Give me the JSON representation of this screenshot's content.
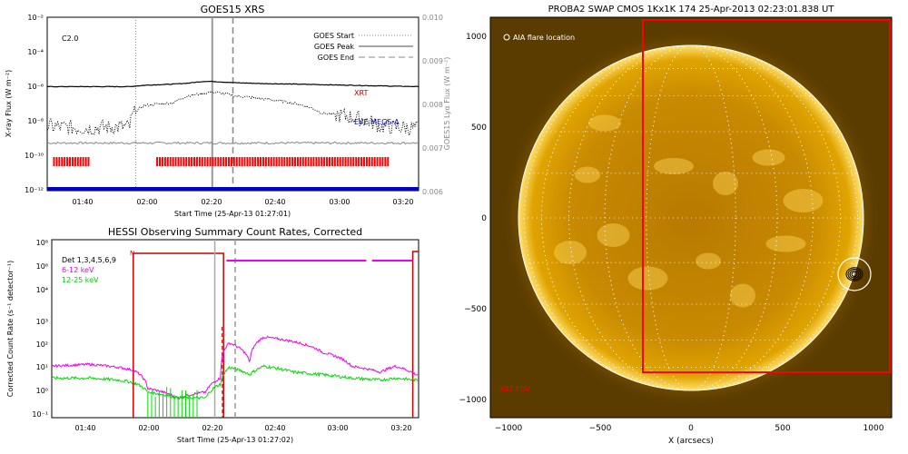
{
  "goes": {
    "title": "GOES15 XRS",
    "ylabel": "X-ray Flux (W m⁻²)",
    "y2label": "GOES15 Lyα Flux (W m⁻²)",
    "xlabel": "Start Time (25-Apr-13 01:27:01)",
    "class_label": "C2.0",
    "legend": [
      "GOES Start",
      "GOES Peak",
      "GOES End"
    ],
    "annotations": {
      "xrt": "XRT",
      "eve": "EVE MEGS-A"
    },
    "y_ticks": [
      "10⁻²",
      "10⁻⁴",
      "10⁻⁶",
      "10⁻⁸",
      "10⁻¹⁰",
      "10⁻¹²"
    ],
    "y2_ticks": [
      "0.010",
      "0.009",
      "0.008",
      "0.007",
      "0.006"
    ],
    "x_ticks": [
      "01:40",
      "02:00",
      "02:20",
      "02:40",
      "03:00",
      "03:20"
    ]
  },
  "hessi": {
    "title": "HESSI Observing Summary Count Rates, Corrected",
    "ylabel": "Corrected Count Rate (s⁻¹ detector⁻¹)",
    "xlabel": "Start Time (25-Apr-13 01:27:02)",
    "legend": [
      "Det 1,3,4,5,6,9",
      "6-12 keV",
      "12-25 keV"
    ],
    "flag_label": "N",
    "y_ticks": [
      "10⁸",
      "10⁶",
      "10⁴",
      "10³",
      "10²",
      "10¹",
      "10⁰",
      "10⁻¹"
    ],
    "x_ticks": [
      "01:40",
      "02:00",
      "02:20",
      "02:40",
      "03:00",
      "03:20"
    ]
  },
  "swap": {
    "title": "PROBA2 SWAP CMOS 1Kx1K 174 25-Apr-2013 02:23:01.838 UT",
    "xlabel": "X (arcsecs)",
    "aia_label": "AIA flare location",
    "fov_label": "XRT FOV",
    "x_ticks": [
      "−1000",
      "−500",
      "0",
      "500",
      "1000"
    ],
    "y_ticks": [
      "1000",
      "500",
      "0",
      "−500",
      "−1000"
    ]
  },
  "colors": {
    "goes_long": "#000000",
    "markers": "#ff0000",
    "eve": "#0000cc",
    "lya": "#888888",
    "hessi_6_12": "#ee00ee",
    "hessi_12_25": "#00dd00",
    "hessi_frame": "#cc0000",
    "sun_bg": "#5a3c00",
    "sun_disk": "#c88200"
  },
  "chart_data": [
    {
      "type": "line",
      "title": "GOES15 XRS",
      "xlabel": "Start Time (25-Apr-13 01:27:01)",
      "ylabel": "X-ray Flux (W m⁻²)",
      "y_scale": "log",
      "ylim": [
        1e-12,
        0.01
      ],
      "y2lim": [
        0.006,
        0.01
      ],
      "x": [
        "01:27",
        "01:40",
        "01:55",
        "02:00",
        "02:10",
        "02:15",
        "02:20",
        "02:23",
        "02:30",
        "02:40",
        "03:00",
        "03:20",
        "03:33"
      ],
      "series": [
        {
          "name": "XRT",
          "values": [
            1e-06,
            1e-06,
            1e-06,
            1.2e-06,
            1.4e-06,
            1.6e-06,
            2e-06,
            2e-06,
            1.7e-06,
            1.5e-06,
            1.3e-06,
            1.1e-06,
            1e-06
          ]
        },
        {
          "name": "EVE MEGS-A",
          "values": [
            5e-09,
            4e-09,
            5e-09,
            8e-08,
            1.2e-07,
            3e-07,
            4e-07,
            5e-07,
            3e-07,
            2e-07,
            3e-08,
            5e-09,
            4e-09
          ]
        },
        {
          "values": [
            0.0071,
            0.0071,
            0.0071,
            0.0071,
            0.0071,
            0.0071,
            0.0071,
            0.0071,
            0.0071,
            0.0071,
            0.0071,
            0.0071,
            0.0071
          ],
          "axis": "y2"
        }
      ],
      "vlines": {
        "GOES Start": "01:57",
        "GOES Peak": "02:23",
        "GOES End": "02:30"
      },
      "annotations": [
        "C2.0"
      ]
    },
    {
      "type": "line",
      "title": "HESSI Observing Summary Count Rates, Corrected",
      "xlabel": "Start Time (25-Apr-13 01:27:02)",
      "ylabel": "Corrected Count Rate (s⁻¹ detector⁻¹)",
      "y_scale": "log",
      "ylim": [
        0.1,
        100000000.0
      ],
      "x": [
        "01:27",
        "01:40",
        "01:50",
        "01:55",
        "02:00",
        "02:10",
        "02:20",
        "02:25",
        "02:28",
        "02:35",
        "02:40",
        "02:50",
        "03:00",
        "03:10",
        "03:20",
        "03:25",
        "03:32"
      ],
      "series": [
        {
          "name": "6-12 keV",
          "values": [
            40,
            50,
            35,
            25,
            3,
            1,
            2,
            10,
            600,
            60,
            1200,
            700,
            200,
            40,
            20,
            40,
            15
          ]
        },
        {
          "name": "12-25 keV",
          "values": [
            10,
            10,
            8,
            6,
            2,
            1,
            1,
            5,
            35,
            15,
            40,
            20,
            15,
            10,
            8,
            10,
            8
          ]
        }
      ],
      "legend": [
        "Det 1,3,4,5,6,9",
        "6-12 keV",
        "12-25 keV"
      ]
    },
    {
      "type": "image",
      "title": "PROBA2 SWAP CMOS 1Kx1K 174 25-Apr-2013 02:23:01.838 UT",
      "xlabel": "X (arcsecs)",
      "xlim": [
        -1100,
        1100
      ],
      "ylim": [
        -1100,
        1100
      ],
      "solar_radius_arcsec": 955,
      "aia_flare_location": [
        930,
        -310
      ],
      "xrt_fov": {
        "x": [
          -260,
          1100
        ],
        "y": [
          -860,
          1100
        ]
      }
    }
  ]
}
